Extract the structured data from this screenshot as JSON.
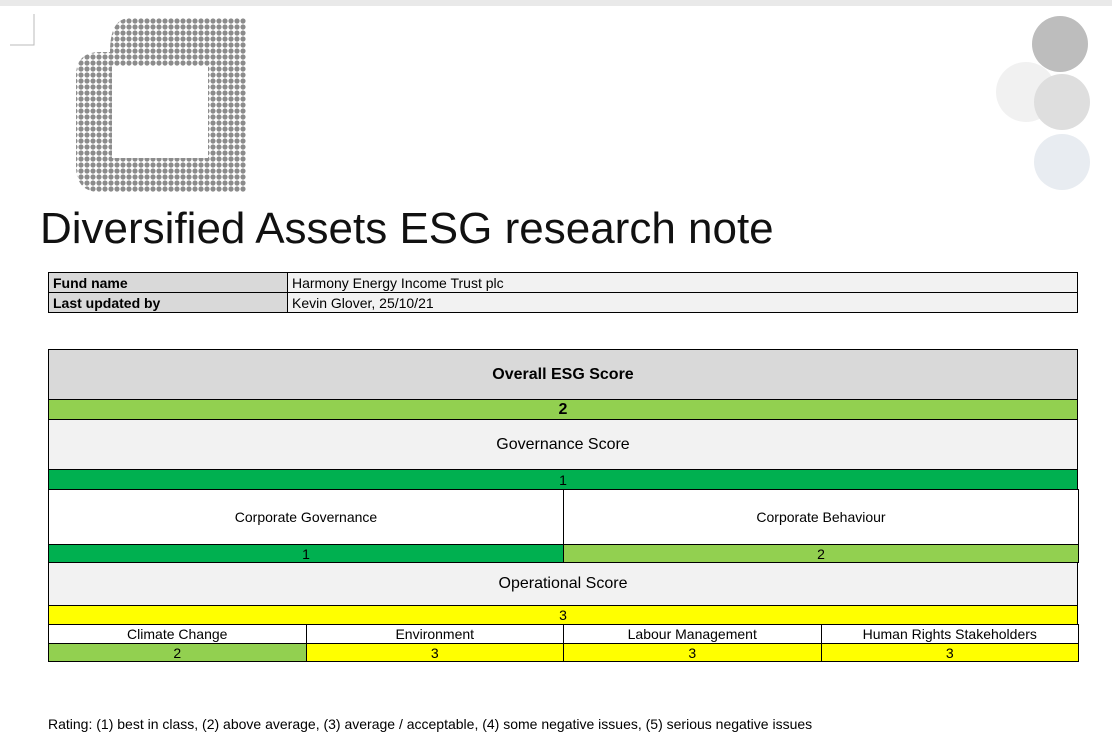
{
  "title": "Diversified Assets ESG research note",
  "fund_info": {
    "rows": [
      [
        "Fund name",
        "Harmony Energy Income Trust plc"
      ],
      [
        "Last updated by",
        "Kevin Glover, 25/10/21"
      ]
    ]
  },
  "scores": {
    "overall": {
      "label": "Overall ESG Score",
      "score": 2,
      "color": "#92d050"
    },
    "governance": {
      "label": "Governance Score",
      "score": 1,
      "color": "#00b050",
      "items": [
        {
          "label": "Corporate Governance",
          "score": 1,
          "color": "#00b050"
        },
        {
          "label": "Corporate Behaviour",
          "score": 2,
          "color": "#92d050"
        }
      ]
    },
    "operational": {
      "label": "Operational Score",
      "score": 3,
      "color": "#ffff00",
      "items": [
        {
          "label": "Climate Change",
          "score": 2,
          "color": "#92d050"
        },
        {
          "label": "Environment",
          "score": 3,
          "color": "#ffff00"
        },
        {
          "label": "Labour Management",
          "score": 3,
          "color": "#ffff00"
        },
        {
          "label": "Human Rights Stakeholders",
          "score": 3,
          "color": "#ffff00"
        }
      ]
    }
  },
  "rating_note": "Rating: (1) best in class, (2) above average, (3) average / acceptable, (4) some negative issues, (5) serious negative issues"
}
